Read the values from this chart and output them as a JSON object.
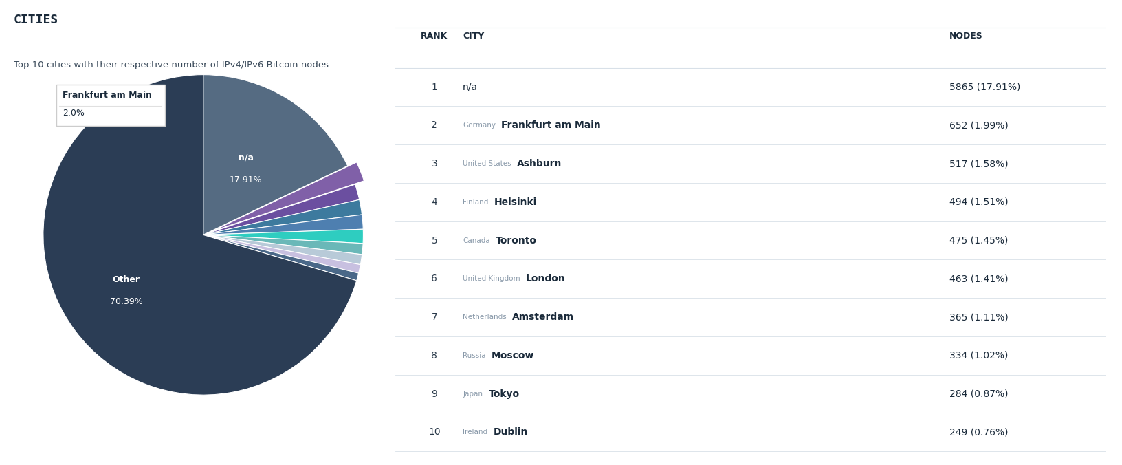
{
  "title": "CITIES",
  "subtitle": "Top 10 cities with their respective number of IPv4/IPv6 Bitcoin nodes.",
  "pie_labels": [
    "n/a",
    "Frankfurt am Main",
    "Ashburn",
    "Helsinki",
    "Toronto",
    "London",
    "Amsterdam",
    "Moscow",
    "Tokyo",
    "Dublin",
    "Other"
  ],
  "pie_values": [
    17.91,
    1.99,
    1.58,
    1.51,
    1.45,
    1.41,
    1.11,
    1.02,
    0.87,
    0.76,
    70.39
  ],
  "pie_colors": [
    "#556b82",
    "#8060a8",
    "#6b4fa0",
    "#3d7a9e",
    "#4e7fb0",
    "#2ecdc0",
    "#6ab8b8",
    "#b8cad8",
    "#c8c0e0",
    "#4a6888",
    "#2b3d55"
  ],
  "pie_explode_index": 1,
  "tooltip_label": "Frankfurt am Main",
  "tooltip_value": "2.0%",
  "table_ranks": [
    1,
    2,
    3,
    4,
    5,
    6,
    7,
    8,
    9,
    10
  ],
  "table_countries": [
    "",
    "Germany",
    "United States",
    "Finland",
    "Canada",
    "United Kingdom",
    "Netherlands",
    "Russia",
    "Japan",
    "Ireland"
  ],
  "table_cities": [
    "n/a",
    "Frankfurt am Main",
    "Ashburn",
    "Helsinki",
    "Toronto",
    "London",
    "Amsterdam",
    "Moscow",
    "Tokyo",
    "Dublin"
  ],
  "table_nodes": [
    "5865 (17.91%)",
    "652 (1.99%)",
    "517 (1.58%)",
    "494 (1.51%)",
    "475 (1.45%)",
    "463 (1.41%)",
    "365 (1.11%)",
    "334 (1.02%)",
    "284 (0.87%)",
    "249 (0.76%)"
  ],
  "bg_color": "#ffffff",
  "title_color": "#1a2a3a",
  "subtitle_color": "#3a4a5a",
  "rank_color": "#2a3a4a",
  "country_color": "#8a9aaa",
  "city_color": "#1a2a3a",
  "nodes_color": "#1a2a3a",
  "header_color": "#1a2a3a",
  "divider_color": "#d8e0e8",
  "inner_label_fontsize": 9,
  "explode_amount": 0.06
}
